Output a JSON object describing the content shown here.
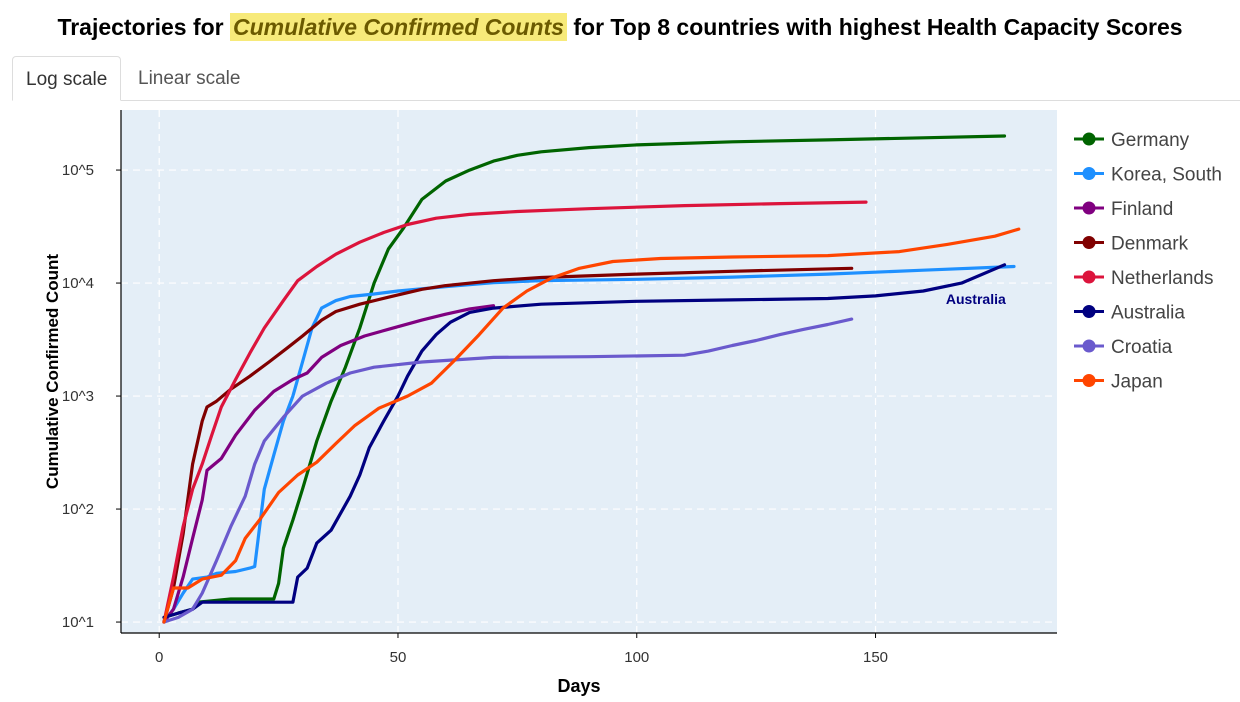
{
  "title": {
    "prefix": "Trajectories for ",
    "highlight": "Cumulative Confirmed Counts",
    "suffix": " for Top 8 countries with highest Health Capacity Scores"
  },
  "tabs": [
    {
      "label": "Log scale",
      "active": true
    },
    {
      "label": "Linear scale",
      "active": false
    }
  ],
  "chart_data": {
    "type": "line",
    "xlabel": "Days",
    "ylabel": "Cumulative Confirmed Count",
    "x_ticks": [
      0,
      50,
      100,
      150
    ],
    "y_scale": "log",
    "y_ticks": [
      {
        "value": 10,
        "label": "10^1"
      },
      {
        "value": 100,
        "label": "10^2"
      },
      {
        "value": 1000,
        "label": "10^3"
      },
      {
        "value": 10000,
        "label": "10^4"
      },
      {
        "value": 100000,
        "label": "10^5"
      }
    ],
    "xlim": [
      -8,
      188
    ],
    "ylim": [
      8,
      340000
    ],
    "grid": true,
    "legend_position": "right",
    "background": "#e4eef7",
    "annotations": [
      {
        "text": "Australia",
        "x": 171,
        "y": 6500,
        "color": "#000080"
      }
    ],
    "series": [
      {
        "name": "Germany",
        "color": "#006400",
        "points": [
          [
            1,
            11
          ],
          [
            4,
            12
          ],
          [
            7,
            13
          ],
          [
            8,
            15
          ],
          [
            15,
            16
          ],
          [
            24,
            16
          ],
          [
            25,
            22
          ],
          [
            26,
            45
          ],
          [
            28,
            80
          ],
          [
            30,
            150
          ],
          [
            33,
            400
          ],
          [
            36,
            900
          ],
          [
            39,
            1800
          ],
          [
            42,
            4000
          ],
          [
            45,
            10000
          ],
          [
            48,
            20000
          ],
          [
            51,
            30000
          ],
          [
            55,
            55000
          ],
          [
            60,
            80000
          ],
          [
            65,
            100000
          ],
          [
            70,
            120000
          ],
          [
            75,
            135000
          ],
          [
            80,
            145000
          ],
          [
            90,
            158000
          ],
          [
            100,
            167000
          ],
          [
            120,
            178000
          ],
          [
            140,
            185000
          ],
          [
            160,
            193000
          ],
          [
            177,
            200000
          ]
        ]
      },
      {
        "name": "Korea, South",
        "color": "#1e90ff",
        "points": [
          [
            1,
            10
          ],
          [
            3,
            13
          ],
          [
            5,
            18
          ],
          [
            7,
            24
          ],
          [
            10,
            25
          ],
          [
            12,
            27
          ],
          [
            16,
            28
          ],
          [
            19,
            30
          ],
          [
            20,
            31
          ],
          [
            22,
            150
          ],
          [
            24,
            300
          ],
          [
            26,
            600
          ],
          [
            28,
            1000
          ],
          [
            30,
            2000
          ],
          [
            32,
            4000
          ],
          [
            34,
            6000
          ],
          [
            37,
            7000
          ],
          [
            40,
            7600
          ],
          [
            45,
            8000
          ],
          [
            50,
            8500
          ],
          [
            60,
            9300
          ],
          [
            70,
            10100
          ],
          [
            80,
            10500
          ],
          [
            100,
            10800
          ],
          [
            120,
            11300
          ],
          [
            140,
            12000
          ],
          [
            160,
            13000
          ],
          [
            179,
            14000
          ]
        ]
      },
      {
        "name": "Finland",
        "color": "#800080",
        "points": [
          [
            1,
            10
          ],
          [
            3,
            13
          ],
          [
            5,
            25
          ],
          [
            7,
            55
          ],
          [
            9,
            120
          ],
          [
            10,
            220
          ],
          [
            13,
            280
          ],
          [
            16,
            450
          ],
          [
            20,
            750
          ],
          [
            24,
            1100
          ],
          [
            28,
            1400
          ],
          [
            31,
            1600
          ],
          [
            34,
            2200
          ],
          [
            38,
            2800
          ],
          [
            43,
            3400
          ],
          [
            48,
            3900
          ],
          [
            55,
            4700
          ],
          [
            60,
            5300
          ],
          [
            65,
            5900
          ],
          [
            70,
            6300
          ]
        ]
      },
      {
        "name": "Denmark",
        "color": "#800000",
        "points": [
          [
            1,
            10
          ],
          [
            3,
            20
          ],
          [
            5,
            60
          ],
          [
            7,
            250
          ],
          [
            9,
            600
          ],
          [
            10,
            800
          ],
          [
            12,
            900
          ],
          [
            15,
            1150
          ],
          [
            19,
            1500
          ],
          [
            23,
            2000
          ],
          [
            27,
            2700
          ],
          [
            30,
            3400
          ],
          [
            34,
            4700
          ],
          [
            37,
            5600
          ],
          [
            42,
            6500
          ],
          [
            48,
            7500
          ],
          [
            55,
            8800
          ],
          [
            60,
            9500
          ],
          [
            70,
            10500
          ],
          [
            80,
            11200
          ],
          [
            100,
            12000
          ],
          [
            120,
            12700
          ],
          [
            145,
            13500
          ]
        ]
      },
      {
        "name": "Netherlands",
        "color": "#dc143c",
        "points": [
          [
            1,
            10
          ],
          [
            3,
            25
          ],
          [
            5,
            70
          ],
          [
            7,
            150
          ],
          [
            9,
            250
          ],
          [
            11,
            450
          ],
          [
            13,
            800
          ],
          [
            16,
            1400
          ],
          [
            19,
            2400
          ],
          [
            22,
            4000
          ],
          [
            26,
            7000
          ],
          [
            29,
            10500
          ],
          [
            33,
            14000
          ],
          [
            37,
            18000
          ],
          [
            42,
            23000
          ],
          [
            47,
            28000
          ],
          [
            52,
            33000
          ],
          [
            58,
            37500
          ],
          [
            65,
            40500
          ],
          [
            75,
            43000
          ],
          [
            90,
            45500
          ],
          [
            110,
            48500
          ],
          [
            130,
            50500
          ],
          [
            148,
            52000
          ]
        ]
      },
      {
        "name": "Australia",
        "color": "#000080",
        "points": [
          [
            1,
            11
          ],
          [
            4,
            12
          ],
          [
            7,
            13
          ],
          [
            9,
            15
          ],
          [
            28,
            15
          ],
          [
            29,
            25
          ],
          [
            31,
            30
          ],
          [
            33,
            50
          ],
          [
            36,
            65
          ],
          [
            40,
            130
          ],
          [
            42,
            200
          ],
          [
            44,
            350
          ],
          [
            47,
            600
          ],
          [
            50,
            1000
          ],
          [
            52,
            1500
          ],
          [
            55,
            2500
          ],
          [
            58,
            3500
          ],
          [
            61,
            4500
          ],
          [
            65,
            5500
          ],
          [
            70,
            6000
          ],
          [
            80,
            6500
          ],
          [
            100,
            6900
          ],
          [
            120,
            7100
          ],
          [
            140,
            7300
          ],
          [
            150,
            7700
          ],
          [
            160,
            8500
          ],
          [
            168,
            10000
          ],
          [
            177,
            14500
          ]
        ]
      },
      {
        "name": "Croatia",
        "color": "#6a5acd",
        "points": [
          [
            1,
            10
          ],
          [
            4,
            11
          ],
          [
            7,
            13
          ],
          [
            9,
            18
          ],
          [
            12,
            35
          ],
          [
            15,
            70
          ],
          [
            18,
            130
          ],
          [
            20,
            250
          ],
          [
            22,
            400
          ],
          [
            26,
            650
          ],
          [
            30,
            1000
          ],
          [
            35,
            1300
          ],
          [
            40,
            1600
          ],
          [
            45,
            1800
          ],
          [
            55,
            2000
          ],
          [
            70,
            2200
          ],
          [
            90,
            2230
          ],
          [
            110,
            2300
          ],
          [
            115,
            2500
          ],
          [
            120,
            2800
          ],
          [
            125,
            3100
          ],
          [
            130,
            3500
          ],
          [
            135,
            3900
          ],
          [
            140,
            4300
          ],
          [
            145,
            4800
          ]
        ]
      },
      {
        "name": "Japan",
        "color": "#ff4500",
        "points": [
          [
            1,
            10
          ],
          [
            3,
            20
          ],
          [
            6,
            20
          ],
          [
            9,
            24
          ],
          [
            13,
            26
          ],
          [
            16,
            35
          ],
          [
            18,
            55
          ],
          [
            21,
            80
          ],
          [
            25,
            140
          ],
          [
            29,
            200
          ],
          [
            33,
            260
          ],
          [
            37,
            380
          ],
          [
            41,
            550
          ],
          [
            46,
            780
          ],
          [
            52,
            1000
          ],
          [
            57,
            1300
          ],
          [
            62,
            2100
          ],
          [
            67,
            3500
          ],
          [
            72,
            6000
          ],
          [
            77,
            8500
          ],
          [
            82,
            11000
          ],
          [
            88,
            13500
          ],
          [
            95,
            15500
          ],
          [
            105,
            16500
          ],
          [
            120,
            17000
          ],
          [
            140,
            17500
          ],
          [
            155,
            19000
          ],
          [
            165,
            22000
          ],
          [
            175,
            26000
          ],
          [
            180,
            30000
          ]
        ]
      }
    ]
  }
}
